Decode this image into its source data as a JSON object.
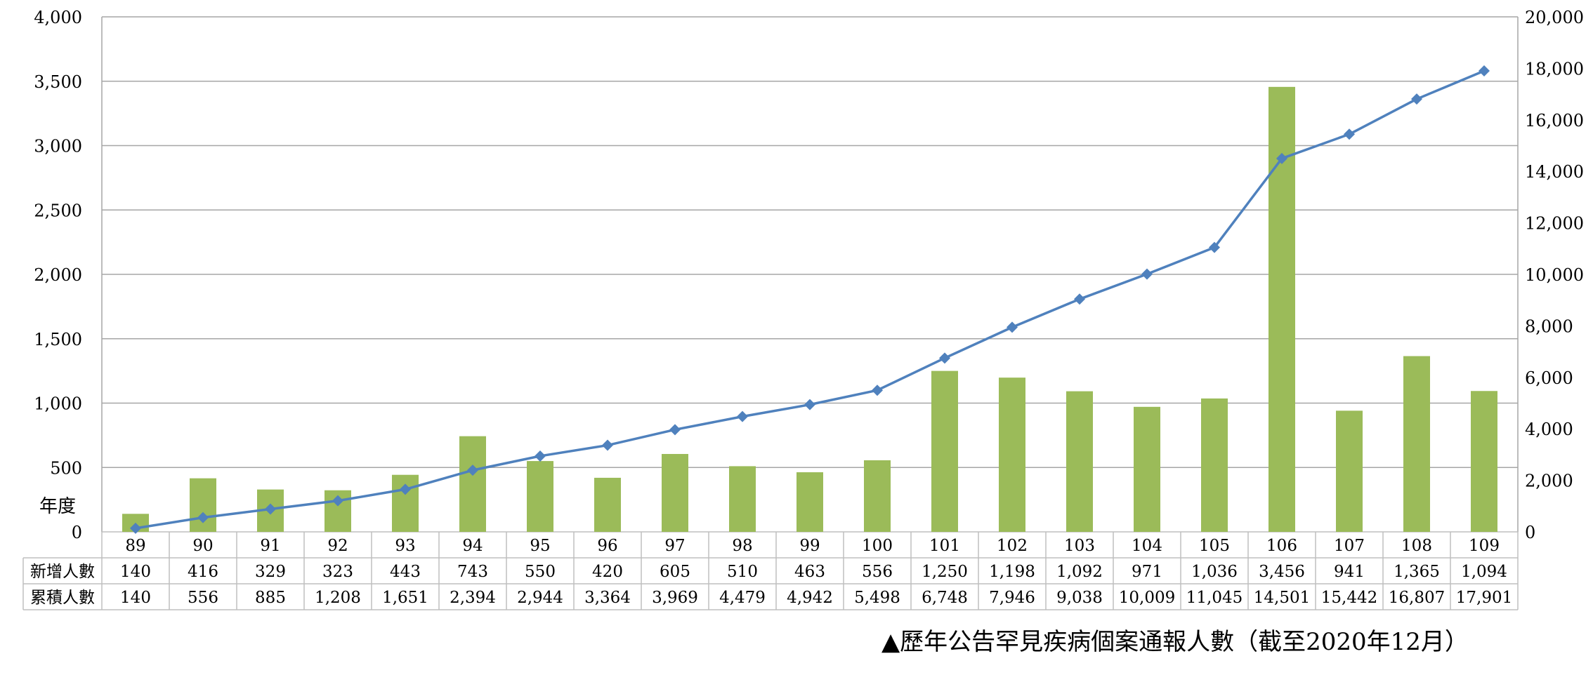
{
  "chart_data": {
    "type": "bar",
    "categories": [
      "89",
      "90",
      "91",
      "92",
      "93",
      "94",
      "95",
      "96",
      "97",
      "98",
      "99",
      "100",
      "101",
      "102",
      "103",
      "104",
      "105",
      "106",
      "107",
      "108",
      "109"
    ],
    "series": [
      {
        "name": "新增人數",
        "chart": "bar",
        "axis": "left",
        "color": "#9bbb59",
        "values": [
          140,
          416,
          329,
          323,
          443,
          743,
          550,
          420,
          605,
          510,
          463,
          556,
          1250,
          1198,
          1092,
          971,
          1036,
          3456,
          941,
          1365,
          1094
        ]
      },
      {
        "name": "累積人數",
        "chart": "line",
        "axis": "right",
        "color": "#4f81bd",
        "values": [
          140,
          556,
          885,
          1208,
          1651,
          2394,
          2944,
          3364,
          3969,
          4479,
          4942,
          5498,
          6748,
          7946,
          9038,
          10009,
          11045,
          14501,
          15442,
          16807,
          17901
        ]
      }
    ],
    "table_rows": [
      {
        "label": "新增人數",
        "cells": [
          "140",
          "416",
          "329",
          "323",
          "443",
          "743",
          "550",
          "420",
          "605",
          "510",
          "463",
          "556",
          "1,250",
          "1,198",
          "1,092",
          "971",
          "1,036",
          "3,456",
          "941",
          "1,365",
          "1,094"
        ]
      },
      {
        "label": "累積人數",
        "cells": [
          "140",
          "556",
          "885",
          "1,208",
          "1,651",
          "2,394",
          "2,944",
          "3,364",
          "3,969",
          "4,479",
          "4,942",
          "5,498",
          "6,748",
          "7,946",
          "9,038",
          "10,009",
          "11,045",
          "14,501",
          "15,442",
          "16,807",
          "17,901"
        ]
      }
    ],
    "xlabel": "年度",
    "y_left": {
      "range": [
        0,
        4000
      ],
      "ticks": [
        "0",
        "500",
        "1,000",
        "1,500",
        "2,000",
        "2,500",
        "3,000",
        "3,500",
        "4,000"
      ],
      "values": [
        0,
        500,
        1000,
        1500,
        2000,
        2500,
        3000,
        3500,
        4000
      ]
    },
    "y_right": {
      "range": [
        0,
        20000
      ],
      "ticks": [
        "0",
        "2,000",
        "4,000",
        "6,000",
        "8,000",
        "10,000",
        "12,000",
        "14,000",
        "16,000",
        "18,000",
        "20,000"
      ],
      "values": [
        0,
        2000,
        4000,
        6000,
        8000,
        10000,
        12000,
        14000,
        16000,
        18000,
        20000
      ]
    },
    "grid": true,
    "legend": "none",
    "gridline_color": "#a6a6a6",
    "table_border_color": "#bfbfbf"
  },
  "caption": "▲歷年公告罕見疾病個案通報人數（截至2020年12月）"
}
